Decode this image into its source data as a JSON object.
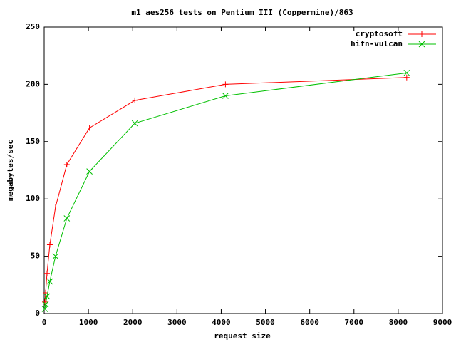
{
  "chart_data": {
    "type": "line",
    "title": "m1 aes256 tests on Pentium III (Coppermine)/863",
    "x_label": "request size",
    "y_label": "megabytes/sec",
    "x": [
      16,
      32,
      64,
      128,
      256,
      512,
      1024,
      2048,
      4096,
      8192
    ],
    "series": [
      {
        "name": "cryptosoft",
        "color": "#ff0000",
        "marker": "+",
        "values": [
          10,
          18,
          35,
          60,
          93,
          130,
          162,
          186,
          200,
          206
        ]
      },
      {
        "name": "hifn-vulcan",
        "color": "#00c000",
        "marker": "x",
        "values": [
          4,
          8,
          15,
          28,
          50,
          83,
          124,
          166,
          190,
          210
        ]
      }
    ],
    "xlim": [
      0,
      9000
    ],
    "xticks": [
      0,
      1000,
      2000,
      3000,
      4000,
      5000,
      6000,
      7000,
      8000,
      9000
    ],
    "ylim": [
      0,
      250
    ],
    "yticks": [
      0,
      50,
      100,
      150,
      200,
      250
    ],
    "grid": false,
    "legend": "top-right"
  }
}
